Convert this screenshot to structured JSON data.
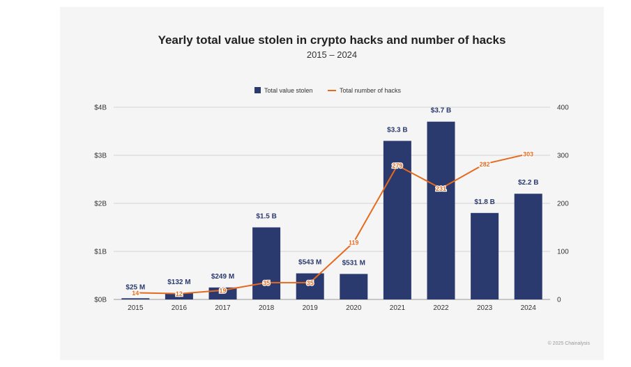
{
  "chart_data": {
    "type": "bar",
    "title": "Yearly total value stolen in crypto hacks and number of hacks",
    "subtitle": "2015 – 2024",
    "categories": [
      "2015",
      "2016",
      "2017",
      "2018",
      "2019",
      "2020",
      "2021",
      "2022",
      "2023",
      "2024"
    ],
    "series": [
      {
        "name": "Total value stolen",
        "type": "bar",
        "axis": "left",
        "color": "#2b3a6e",
        "values": [
          0.025,
          0.132,
          0.249,
          1.5,
          0.543,
          0.531,
          3.3,
          3.7,
          1.8,
          2.2
        ],
        "labels": [
          "$25  M",
          "$132  M",
          "$249  M",
          "$1.5 B",
          "$543  M",
          "$531  M",
          "$3.3 B",
          "$3.7 B",
          "$1.8 B",
          "$2.2 B"
        ]
      },
      {
        "name": "Total number of hacks",
        "type": "line",
        "axis": "right",
        "color": "#e56a1e",
        "values": [
          14,
          12,
          19,
          35,
          35,
          119,
          279,
          231,
          282,
          303
        ],
        "labels": [
          "14",
          "12",
          "19",
          "35",
          "35",
          "119",
          "279",
          "231",
          "282",
          "303"
        ]
      }
    ],
    "y_left": {
      "ylim": [
        0,
        4
      ],
      "ticks": [
        0,
        1,
        2,
        3,
        4
      ],
      "tick_labels": [
        "$0B",
        "$1B",
        "$2B",
        "$3B",
        "$4B"
      ]
    },
    "y_right": {
      "ylim": [
        0,
        400
      ],
      "ticks": [
        0,
        100,
        200,
        300,
        400
      ],
      "tick_labels": [
        "0",
        "100",
        "200",
        "300",
        "400"
      ]
    },
    "grid": true,
    "legend": "top-center"
  },
  "footer": "© 2025 Chainalysis"
}
